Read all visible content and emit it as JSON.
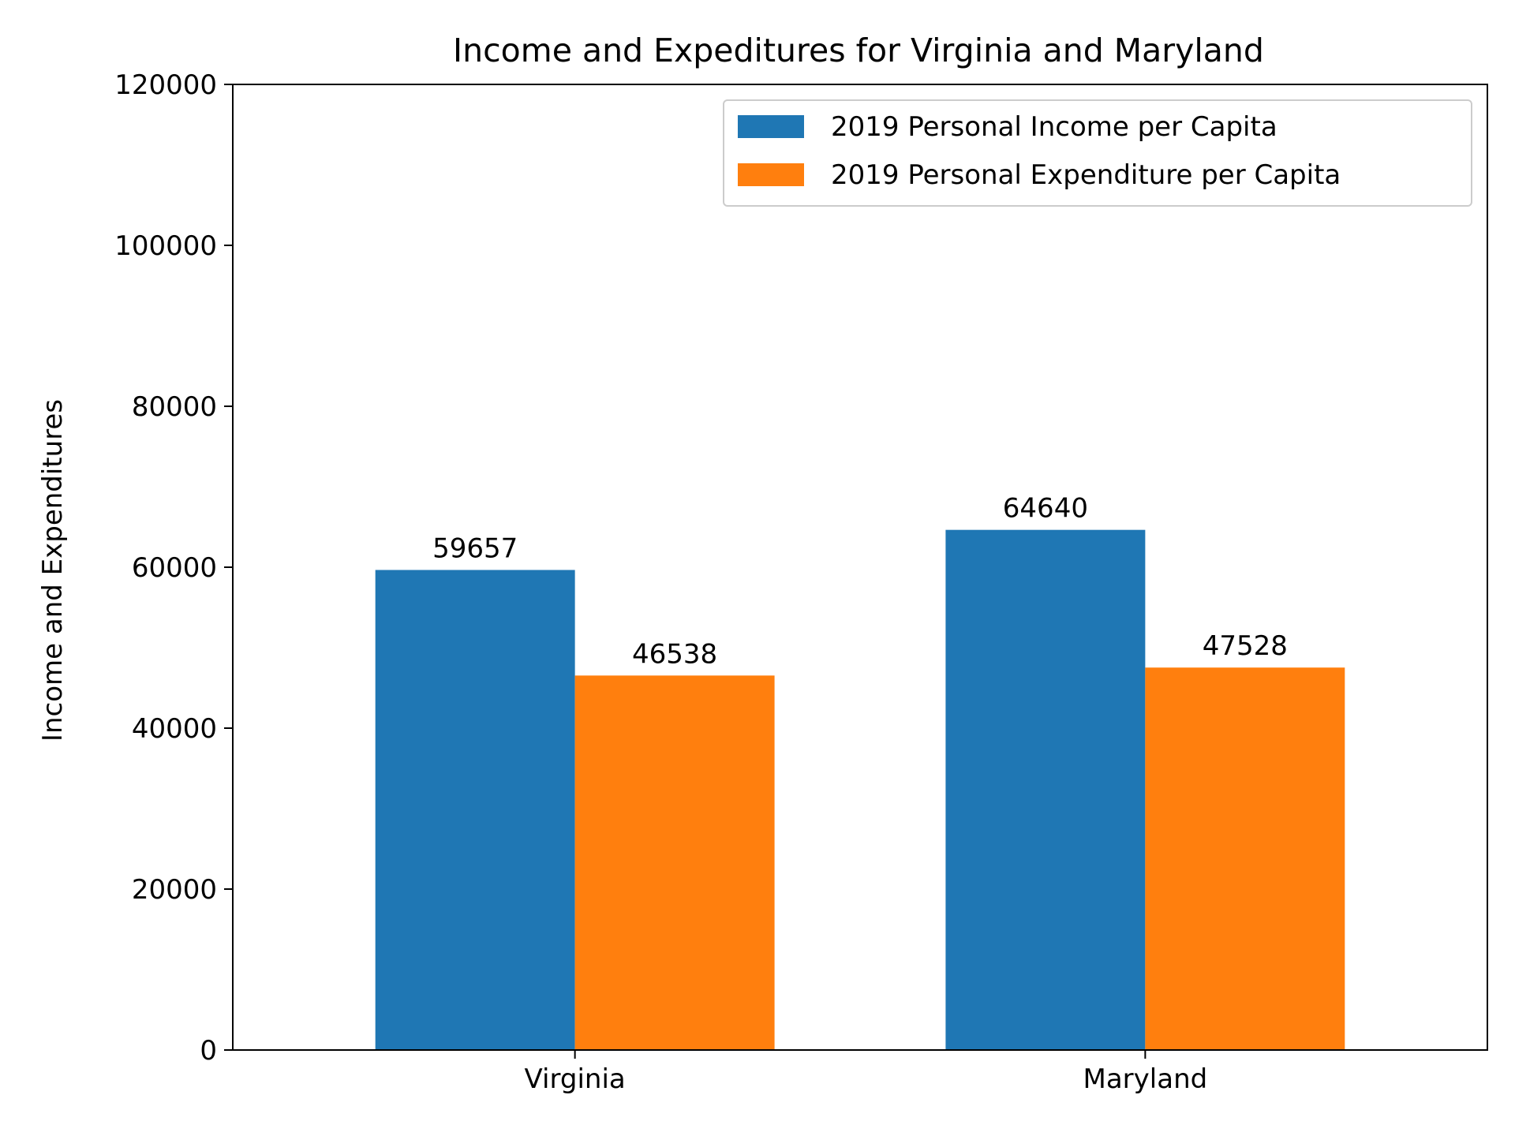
{
  "chart_data": {
    "type": "bar",
    "title": "Income and Expeditures for Virginia and Maryland",
    "xlabel": "",
    "ylabel": "Income and Expenditures",
    "categories": [
      "Virginia",
      "Maryland"
    ],
    "series": [
      {
        "name": "2019 Personal Income per Capita",
        "values": [
          59657,
          64640
        ],
        "color": "#1f77b4"
      },
      {
        "name": "2019 Personal Expenditure per Capita",
        "values": [
          46538,
          47528
        ],
        "color": "#ff7f0e"
      }
    ],
    "ylim": [
      0,
      120000
    ],
    "yticks": [
      0,
      20000,
      40000,
      60000,
      80000,
      100000,
      120000
    ],
    "grid": false,
    "legend_position": "top-right",
    "bar_labels": true
  }
}
